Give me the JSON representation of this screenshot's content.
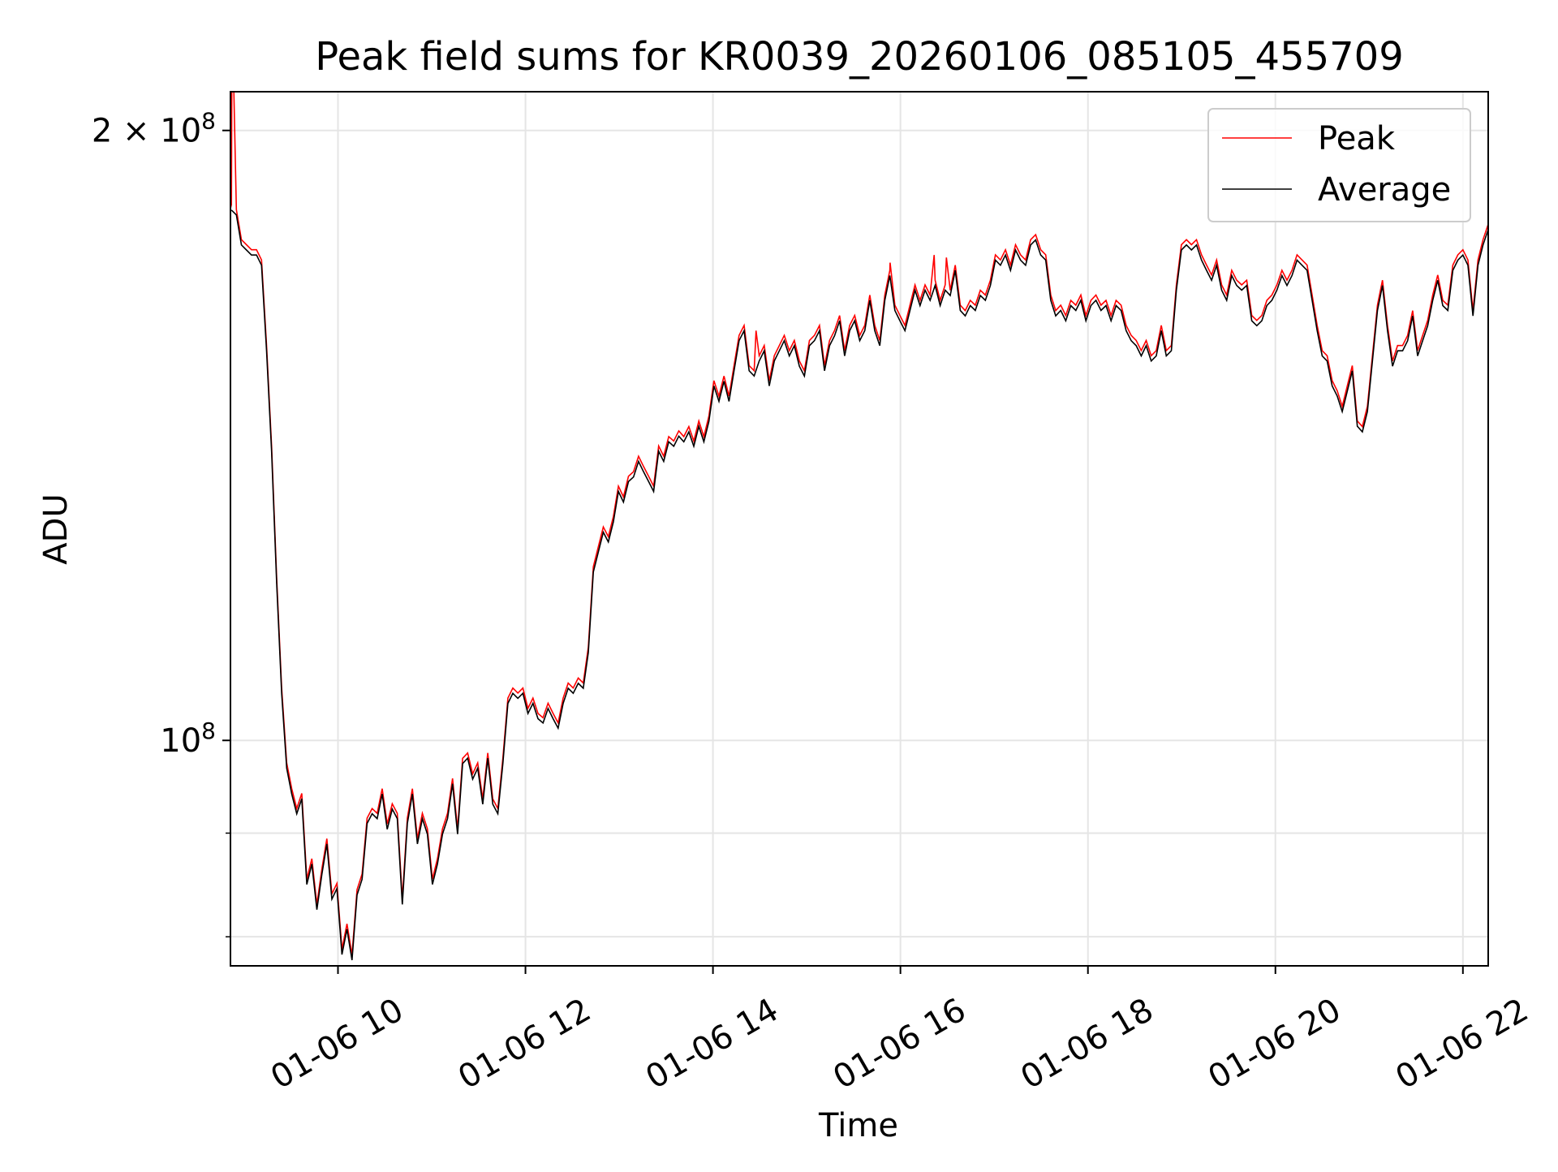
{
  "chart_data": {
    "type": "line",
    "title": "Peak field sums for KR0039_20260106_085105_455709",
    "xlabel": "Time",
    "ylabel": "ADU",
    "x_units": "hours since 01-06 00:00",
    "xlim": [
      8.853,
      22.27
    ],
    "y_scale": "log",
    "y_units": "1e8 ADU",
    "ylim": [
      0.774,
      2.09
    ],
    "grid": true,
    "legend": {
      "placement": "top-right",
      "entries": [
        "Peak",
        "Average"
      ]
    },
    "x_ticks": [
      {
        "value": 10,
        "label": "01-06 10"
      },
      {
        "value": 12,
        "label": "01-06 12"
      },
      {
        "value": 14,
        "label": "01-06 14"
      },
      {
        "value": 16,
        "label": "01-06 16"
      },
      {
        "value": 18,
        "label": "01-06 18"
      },
      {
        "value": 20,
        "label": "01-06 20"
      },
      {
        "value": 22,
        "label": "01-06 22"
      }
    ],
    "y_ticks": [
      {
        "value": 2,
        "label_base": "2 × 10",
        "label_exp": "8"
      },
      {
        "value": 1,
        "label_base": "10",
        "label_exp": "8"
      }
    ],
    "y_minor_ticks": [
      0.8,
      0.9
    ],
    "series_colors": {
      "Peak": "#ff0000",
      "Average": "#000000"
    },
    "sampling": {
      "t0": 8.863,
      "dt": 0.05362
    },
    "average": [
      1.827,
      1.817,
      1.756,
      1.746,
      1.736,
      1.736,
      1.716,
      1.557,
      1.389,
      1.197,
      1.055,
      0.969,
      0.941,
      0.92,
      0.936,
      0.849,
      0.869,
      0.825,
      0.859,
      0.889,
      0.835,
      0.845,
      0.784,
      0.807,
      0.779,
      0.839,
      0.854,
      0.91,
      0.92,
      0.915,
      0.941,
      0.904,
      0.925,
      0.915,
      0.83,
      0.91,
      0.941,
      0.889,
      0.915,
      0.899,
      0.849,
      0.869,
      0.899,
      0.915,
      0.952,
      0.899,
      0.974,
      0.98,
      0.957,
      0.969,
      0.93,
      0.98,
      0.93,
      0.92,
      0.974,
      1.043,
      1.055,
      1.049,
      1.055,
      1.031,
      1.043,
      1.025,
      1.02,
      1.037,
      1.025,
      1.014,
      1.043,
      1.061,
      1.055,
      1.067,
      1.061,
      1.105,
      1.211,
      1.239,
      1.267,
      1.253,
      1.282,
      1.327,
      1.311,
      1.342,
      1.349,
      1.373,
      1.357,
      1.342,
      1.327,
      1.389,
      1.373,
      1.404,
      1.397,
      1.413,
      1.404,
      1.42,
      1.397,
      1.429,
      1.404,
      1.437,
      1.496,
      1.47,
      1.504,
      1.47,
      1.522,
      1.575,
      1.593,
      1.522,
      1.513,
      1.539,
      1.557,
      1.496,
      1.539,
      1.557,
      1.575,
      1.548,
      1.566,
      1.53,
      1.513,
      1.566,
      1.575,
      1.593,
      1.522,
      1.566,
      1.584,
      1.611,
      1.548,
      1.593,
      1.611,
      1.575,
      1.593,
      1.649,
      1.593,
      1.566,
      1.649,
      1.696,
      1.63,
      1.611,
      1.593,
      1.63,
      1.668,
      1.639,
      1.668,
      1.649,
      1.677,
      1.639,
      1.668,
      1.658,
      1.706,
      1.63,
      1.62,
      1.639,
      1.63,
      1.658,
      1.649,
      1.677,
      1.726,
      1.716,
      1.736,
      1.706,
      1.746,
      1.726,
      1.716,
      1.756,
      1.766,
      1.736,
      1.726,
      1.649,
      1.62,
      1.63,
      1.611,
      1.639,
      1.63,
      1.649,
      1.611,
      1.639,
      1.649,
      1.63,
      1.639,
      1.611,
      1.639,
      1.63,
      1.593,
      1.575,
      1.566,
      1.548,
      1.566,
      1.539,
      1.548,
      1.593,
      1.548,
      1.557,
      1.668,
      1.746,
      1.756,
      1.746,
      1.756,
      1.726,
      1.706,
      1.687,
      1.716,
      1.668,
      1.649,
      1.696,
      1.677,
      1.668,
      1.677,
      1.611,
      1.602,
      1.611,
      1.639,
      1.649,
      1.668,
      1.696,
      1.677,
      1.696,
      1.726,
      1.716,
      1.706,
      1.649,
      1.593,
      1.548,
      1.539,
      1.496,
      1.479,
      1.453,
      1.487,
      1.522,
      1.429,
      1.42,
      1.453,
      1.539,
      1.63,
      1.677,
      1.593,
      1.53,
      1.557,
      1.557,
      1.575,
      1.62,
      1.548,
      1.575,
      1.602,
      1.649,
      1.687,
      1.639,
      1.63,
      1.706,
      1.726,
      1.736,
      1.716,
      1.62,
      1.716,
      1.756,
      1.786
    ],
    "peak_offset_factor": 1.006,
    "peak_spikes": [
      {
        "t": 8.87,
        "v": 2.3
      },
      {
        "t": 14.46,
        "v": 1.593
      },
      {
        "t": 15.89,
        "v": 1.721
      },
      {
        "t": 16.36,
        "v": 1.736
      },
      {
        "t": 16.49,
        "v": 1.731
      }
    ]
  }
}
